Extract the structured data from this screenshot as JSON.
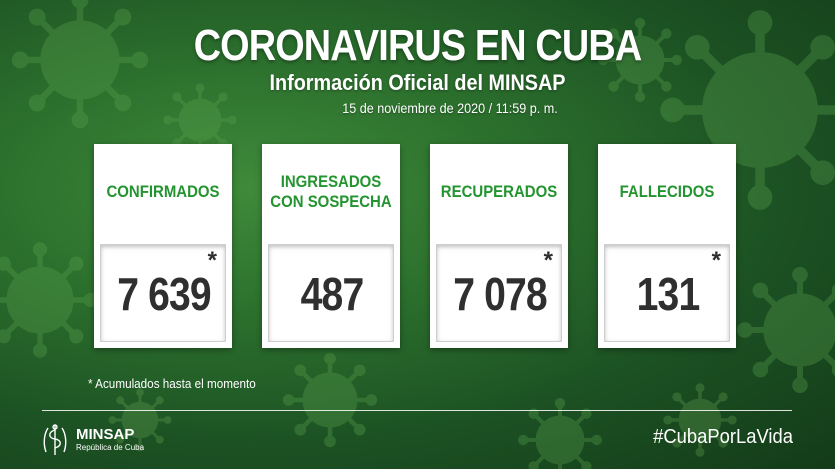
{
  "header": {
    "title": "CORONAVIRUS EN CUBA",
    "subtitle": "Información Oficial del MINSAP",
    "date": "15 de noviembre de 2020 / 11:59 p. m."
  },
  "cards": [
    {
      "label": "CONFIRMADOS",
      "value": "7 639",
      "asterisk": "*"
    },
    {
      "label": "INGRESADOS CON SOSPECHA",
      "value": "487",
      "asterisk": ""
    },
    {
      "label": "RECUPERADOS",
      "value": "7 078",
      "asterisk": "*"
    },
    {
      "label": "FALLECIDOS",
      "value": "131",
      "asterisk": "*"
    }
  ],
  "note": "* Acumulados hasta el momento",
  "footer": {
    "logo_name": "MINSAP",
    "logo_sub": "República de Cuba",
    "hashtag": "#CubaPorLaVida"
  },
  "colors": {
    "background": "#2a6d2c",
    "label_green": "#23942f",
    "value_text": "#2f2f2f"
  },
  "icons": {
    "background": "virus-icon",
    "logo": "minsap-emblem-icon"
  }
}
